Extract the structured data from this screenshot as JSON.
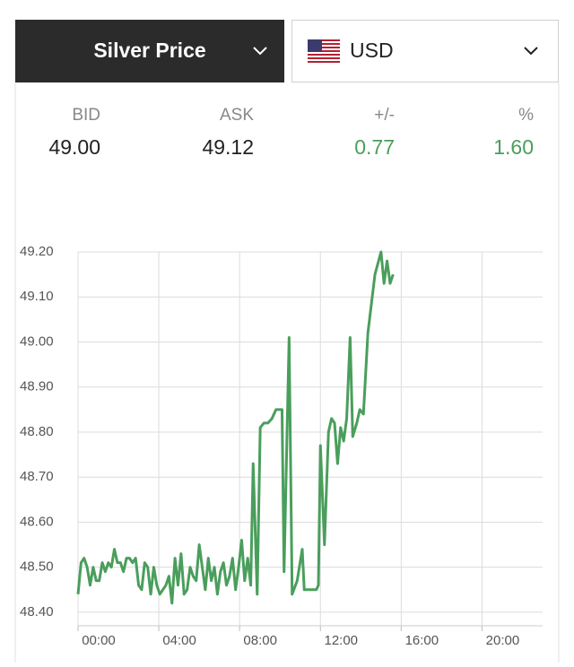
{
  "header": {
    "metal": "Silver Price",
    "currency": "USD"
  },
  "quote": {
    "labels": [
      "BID",
      "ASK",
      "+/-",
      "%"
    ],
    "values": [
      "49.00",
      "49.12",
      "0.77",
      "1.60"
    ]
  },
  "chart_data": {
    "type": "line",
    "x": [
      0,
      0.15,
      0.3,
      0.45,
      0.6,
      0.75,
      0.9,
      1.05,
      1.2,
      1.35,
      1.5,
      1.65,
      1.8,
      1.95,
      2.1,
      2.25,
      2.4,
      2.55,
      2.7,
      2.85,
      3.0,
      3.15,
      3.3,
      3.45,
      3.6,
      3.75,
      3.9,
      4.05,
      4.2,
      4.35,
      4.5,
      4.65,
      4.8,
      4.95,
      5.1,
      5.25,
      5.4,
      5.55,
      5.7,
      5.85,
      6.0,
      6.15,
      6.3,
      6.45,
      6.6,
      6.75,
      6.9,
      7.05,
      7.2,
      7.35,
      7.5,
      7.65,
      7.8,
      7.95,
      8.1,
      8.25,
      8.4,
      8.55,
      8.67,
      8.87,
      9.02,
      9.2,
      9.4,
      9.6,
      9.8,
      10.0,
      10.1,
      10.2,
      10.45,
      10.6,
      10.85,
      11.1,
      11.2,
      11.35,
      11.8,
      11.9,
      12.0,
      12.2,
      12.4,
      12.55,
      12.7,
      12.85,
      13.0,
      13.15,
      13.3,
      13.47,
      13.6,
      13.8,
      13.95,
      14.13,
      14.35,
      14.7,
      15.0,
      15.15,
      15.3,
      15.45,
      15.6
    ],
    "values": [
      48.44,
      48.51,
      48.52,
      48.5,
      48.46,
      48.5,
      48.47,
      48.47,
      48.51,
      48.49,
      48.51,
      48.5,
      48.54,
      48.51,
      48.51,
      48.49,
      48.52,
      48.52,
      48.51,
      48.52,
      48.46,
      48.45,
      48.51,
      48.5,
      48.44,
      48.5,
      48.46,
      48.44,
      48.45,
      48.46,
      48.48,
      48.42,
      48.52,
      48.46,
      48.53,
      48.44,
      48.45,
      48.5,
      48.48,
      48.47,
      48.55,
      48.5,
      48.45,
      48.52,
      48.47,
      48.5,
      48.44,
      48.49,
      48.51,
      48.46,
      48.48,
      48.52,
      48.45,
      48.5,
      48.56,
      48.47,
      48.52,
      48.46,
      48.73,
      48.44,
      48.81,
      48.82,
      48.82,
      48.83,
      48.85,
      48.85,
      48.85,
      48.49,
      49.01,
      48.44,
      48.47,
      48.54,
      48.45,
      48.45,
      48.45,
      48.46,
      48.77,
      48.55,
      48.8,
      48.83,
      48.82,
      48.73,
      48.81,
      48.78,
      48.83,
      49.01,
      48.79,
      48.82,
      48.85,
      48.84,
      49.02,
      49.15,
      49.2,
      49.13,
      49.18,
      49.13,
      49.15
    ],
    "color": "#4a9e5c",
    "xlim": [
      0,
      23
    ],
    "xticks": [
      {
        "value": 0,
        "label": "00:00"
      },
      {
        "value": 4,
        "label": "04:00"
      },
      {
        "value": 8,
        "label": "08:00"
      },
      {
        "value": 12,
        "label": "12:00"
      },
      {
        "value": 16,
        "label": "16:00"
      },
      {
        "value": 20,
        "label": "20:00"
      }
    ],
    "ylim": [
      48.37,
      49.2
    ],
    "yticks": [
      {
        "value": 48.4,
        "label": "48.40"
      },
      {
        "value": 48.5,
        "label": "48.50"
      },
      {
        "value": 48.6,
        "label": "48.60"
      },
      {
        "value": 48.7,
        "label": "48.70"
      },
      {
        "value": 48.8,
        "label": "48.80"
      },
      {
        "value": 48.9,
        "label": "48.90"
      },
      {
        "value": 49.0,
        "label": "49.00"
      },
      {
        "value": 49.1,
        "label": "49.10"
      },
      {
        "value": 49.2,
        "label": "49.20"
      }
    ],
    "grid": true
  }
}
